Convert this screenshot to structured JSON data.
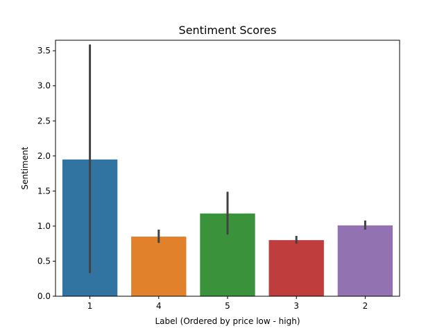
{
  "chart_data": {
    "type": "bar",
    "title": "Sentiment Scores",
    "xlabel": "Label (Ordered by price low - high)",
    "ylabel": "Sentiment",
    "categories": [
      "1",
      "4",
      "5",
      "3",
      "2"
    ],
    "values": [
      1.95,
      0.85,
      1.18,
      0.8,
      1.01
    ],
    "error_low": [
      0.33,
      0.76,
      0.88,
      0.75,
      0.95
    ],
    "error_high": [
      3.59,
      0.95,
      1.49,
      0.86,
      1.08
    ],
    "colors": [
      "#3274a1",
      "#e1812c",
      "#3a923a",
      "#c03d3e",
      "#9372b2"
    ],
    "error_color": "#424242",
    "ylim": [
      0,
      3.65
    ],
    "yticks": [
      "0.0",
      "0.5",
      "1.0",
      "1.5",
      "2.0",
      "2.5",
      "3.0",
      "3.5"
    ],
    "grid": false,
    "legend": false
  }
}
